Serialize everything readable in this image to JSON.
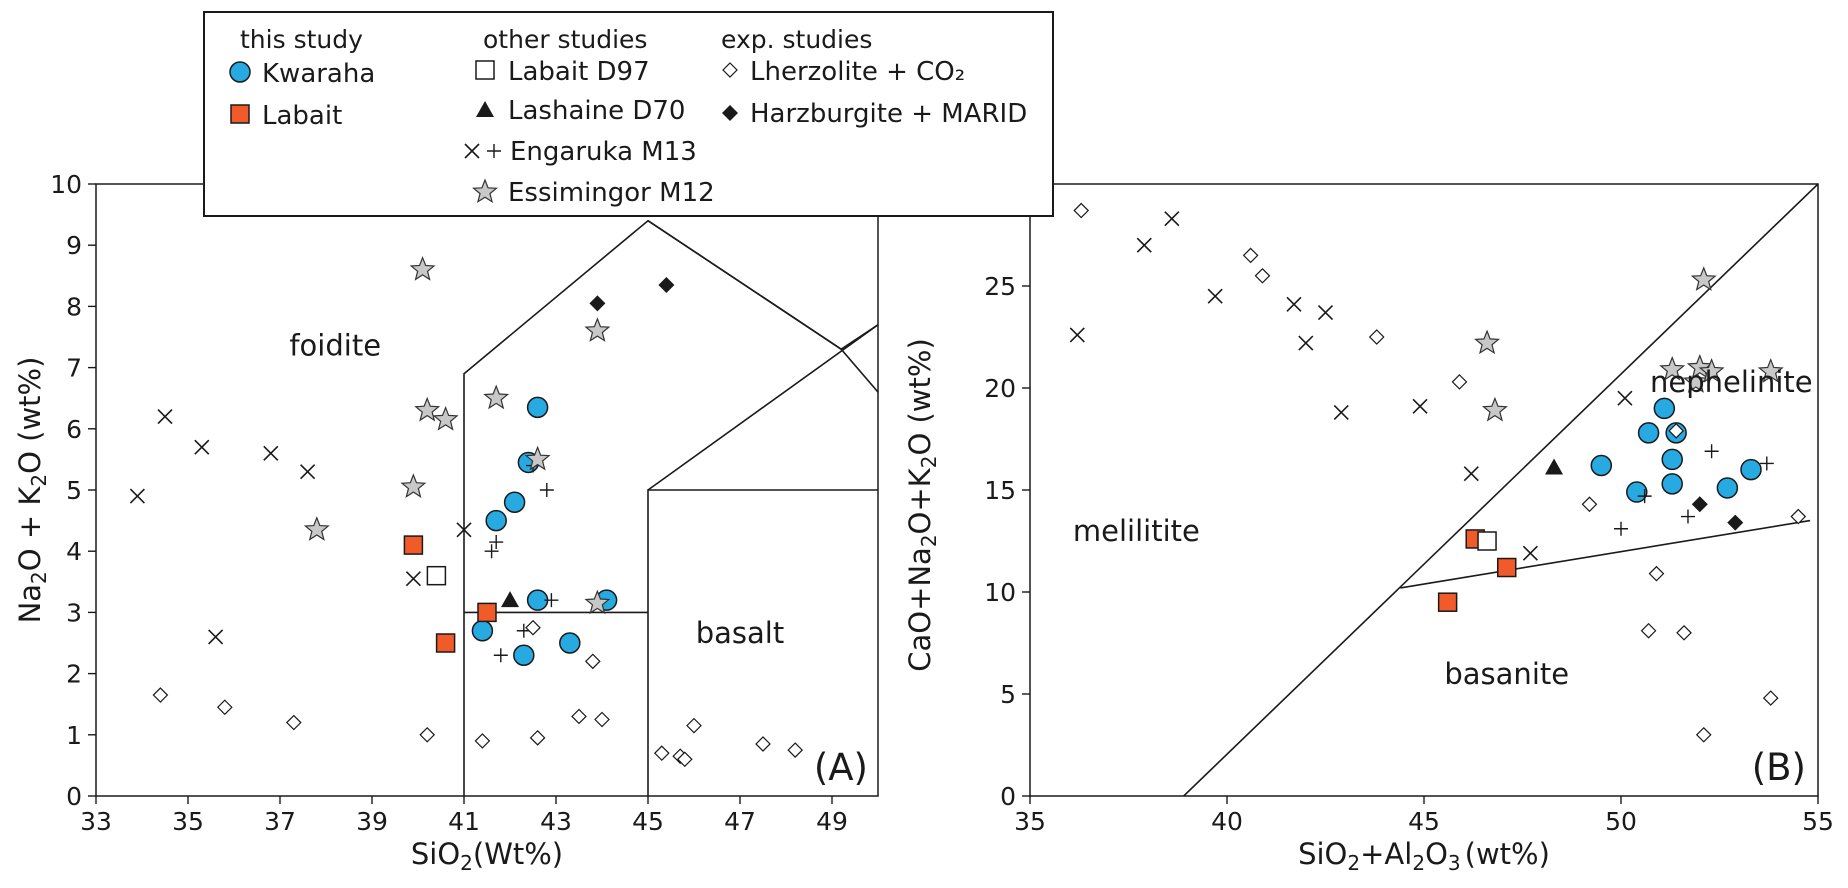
{
  "legend": {
    "groups": [
      {
        "key": "this",
        "heading": "this study",
        "items": [
          {
            "key": "kwaraha",
            "label": "Kwaraha"
          },
          {
            "key": "labait",
            "label": "Labait"
          }
        ]
      },
      {
        "key": "other",
        "heading": "other studies",
        "items": [
          {
            "key": "labait_d97",
            "label": "Labait D97"
          },
          {
            "key": "lashaine",
            "label": "Lashaine D70"
          },
          {
            "key": "engaruka",
            "label": "Engaruka M13"
          },
          {
            "key": "essimingor",
            "label": "Essimingor M12"
          }
        ]
      },
      {
        "key": "exp",
        "heading": "exp. studies",
        "items": [
          {
            "key": "lherzolite",
            "label": "Lherzolite + CO₂"
          },
          {
            "key": "harzburgite",
            "label": "Harzburgite + MARID"
          }
        ]
      }
    ]
  },
  "colors": {
    "kwaraha": "#27aae1",
    "labait": "#f15a29",
    "star": "#c8c8c8",
    "ink": "#1a1a1a"
  },
  "chart_data": [
    {
      "type": "scatter",
      "panel_label": "(A)",
      "xlabel_main": "SiO",
      "xlabel_sub": "2",
      "xlabel_tail": "(Wt%)",
      "ylabel_parts": [
        "Na",
        "2",
        "O + K",
        "2",
        "O (wt%)"
      ],
      "xlim": [
        33,
        50
      ],
      "ylim": [
        0,
        10
      ],
      "xticks": [
        33,
        35,
        37,
        39,
        41,
        43,
        45,
        47,
        49
      ],
      "yticks": [
        0,
        1,
        2,
        3,
        4,
        5,
        6,
        7,
        8,
        9,
        10
      ],
      "field_labels": [
        {
          "text": "foidite",
          "x": 38.2,
          "y": 7.2
        },
        {
          "text": "basalt",
          "x": 47.0,
          "y": 2.5
        }
      ],
      "boundaries": [
        [
          [
            41,
            0
          ],
          [
            41,
            6.9
          ],
          [
            45,
            9.4
          ],
          [
            49.2,
            7.3
          ],
          [
            50,
            6.6
          ]
        ],
        [
          [
            45,
            9.4
          ],
          [
            49.2,
            7.3
          ]
        ],
        [
          [
            49.2,
            7.3
          ],
          [
            50,
            7.7
          ]
        ],
        [
          [
            41,
            3
          ],
          [
            45,
            3
          ]
        ],
        [
          [
            45,
            0
          ],
          [
            45,
            5
          ],
          [
            50,
            5
          ]
        ],
        [
          [
            45,
            5
          ],
          [
            50,
            7.7
          ]
        ]
      ],
      "series": [
        {
          "name": "Kwaraha",
          "marker": "circle",
          "points": [
            [
              41.4,
              2.7
            ],
            [
              41.7,
              4.5
            ],
            [
              42.1,
              4.8
            ],
            [
              42.4,
              5.45
            ],
            [
              42.6,
              6.35
            ],
            [
              42.6,
              3.2
            ],
            [
              42.3,
              2.3
            ],
            [
              43.3,
              2.5
            ],
            [
              44.1,
              3.2
            ]
          ]
        },
        {
          "name": "Labait",
          "marker": "square",
          "points": [
            [
              39.9,
              4.1
            ],
            [
              40.6,
              2.5
            ],
            [
              41.5,
              3.0
            ]
          ]
        },
        {
          "name": "Labait D97",
          "marker": "open-square",
          "points": [
            [
              40.4,
              3.6
            ]
          ]
        },
        {
          "name": "Lashaine D70",
          "marker": "triangle",
          "points": [
            [
              42.0,
              3.2
            ]
          ]
        },
        {
          "name": "Engaruka M13 (x)",
          "marker": "x",
          "points": [
            [
              33.9,
              4.9
            ],
            [
              34.5,
              6.2
            ],
            [
              35.3,
              5.7
            ],
            [
              35.6,
              2.6
            ],
            [
              36.8,
              5.6
            ],
            [
              37.6,
              5.3
            ],
            [
              39.9,
              3.55
            ],
            [
              41.0,
              4.35
            ]
          ]
        },
        {
          "name": "Engaruka M13 (+)",
          "marker": "plus",
          "points": [
            [
              41.6,
              4.0
            ],
            [
              41.7,
              4.15
            ],
            [
              41.8,
              2.3
            ],
            [
              42.3,
              2.7
            ],
            [
              42.5,
              5.4
            ],
            [
              42.8,
              5.0
            ],
            [
              42.9,
              3.2
            ]
          ]
        },
        {
          "name": "Essimingor M12",
          "marker": "star",
          "points": [
            [
              37.8,
              4.35
            ],
            [
              39.9,
              5.05
            ],
            [
              40.1,
              8.6
            ],
            [
              40.2,
              6.3
            ],
            [
              40.6,
              6.15
            ],
            [
              41.7,
              6.5
            ],
            [
              42.6,
              5.5
            ],
            [
              43.9,
              7.6
            ],
            [
              43.9,
              3.15
            ]
          ]
        },
        {
          "name": "Lherzolite + CO2",
          "marker": "open-diamond",
          "points": [
            [
              34.4,
              1.65
            ],
            [
              35.8,
              1.45
            ],
            [
              37.3,
              1.2
            ],
            [
              40.2,
              1.0
            ],
            [
              41.4,
              0.9
            ],
            [
              42.5,
              2.75
            ],
            [
              42.6,
              0.95
            ],
            [
              43.5,
              1.3
            ],
            [
              43.8,
              2.2
            ],
            [
              44.0,
              1.25
            ],
            [
              45.3,
              0.7
            ],
            [
              45.7,
              0.65
            ],
            [
              45.8,
              0.6
            ],
            [
              46.0,
              1.15
            ],
            [
              47.5,
              0.85
            ],
            [
              48.2,
              0.75
            ]
          ]
        },
        {
          "name": "Harzburgite + MARID",
          "marker": "diamond",
          "points": [
            [
              43.9,
              8.05
            ],
            [
              45.4,
              8.35
            ]
          ]
        }
      ]
    },
    {
      "type": "scatter",
      "panel_label": "(B)",
      "xlabel_main": "SiO",
      "xlabel_sub": "2",
      "xlabel_mid": "+Al",
      "xlabel_sub2": "2",
      "xlabel_tail": "O",
      "xlabel_sub3": "3",
      "xlabel_end": "(wt%)",
      "ylabel": "CaO+Na₂O+K₂O (wt%)",
      "ylabel_parts": [
        "CaO+Na",
        "2",
        "O+K",
        "2",
        "O (wt%)"
      ],
      "xlim": [
        35,
        55
      ],
      "ylim": [
        0,
        30
      ],
      "xticks": [
        35,
        40,
        45,
        50,
        55
      ],
      "yticks": [
        0,
        5,
        10,
        15,
        20,
        25
      ],
      "field_labels": [
        {
          "text": "melilitite",
          "x": 37.7,
          "y": 12.5
        },
        {
          "text": "nephelinite",
          "x": 52.8,
          "y": 19.8
        },
        {
          "text": "basanite",
          "x": 47.1,
          "y": 5.5
        }
      ],
      "boundaries": [
        [
          [
            38.9,
            0
          ],
          [
            55,
            30
          ]
        ],
        [
          [
            44.4,
            10.2
          ],
          [
            54.8,
            13.5
          ]
        ]
      ],
      "series": [
        {
          "name": "Kwaraha",
          "marker": "circle",
          "points": [
            [
              49.5,
              16.2
            ],
            [
              50.4,
              14.9
            ],
            [
              50.7,
              17.8
            ],
            [
              51.1,
              19.0
            ],
            [
              51.3,
              15.3
            ],
            [
              51.3,
              16.5
            ],
            [
              51.4,
              17.8
            ],
            [
              52.7,
              15.1
            ],
            [
              53.3,
              16.0
            ]
          ]
        },
        {
          "name": "Labait",
          "marker": "square",
          "points": [
            [
              45.6,
              9.5
            ],
            [
              46.3,
              12.6
            ],
            [
              47.1,
              11.2
            ]
          ]
        },
        {
          "name": "Labait D97",
          "marker": "open-square",
          "points": [
            [
              46.6,
              12.5
            ]
          ]
        },
        {
          "name": "Lashaine D70",
          "marker": "triangle",
          "points": [
            [
              48.3,
              16.1
            ]
          ]
        },
        {
          "name": "Engaruka M13 (x)",
          "marker": "x",
          "points": [
            [
              36.2,
              22.6
            ],
            [
              37.9,
              27.0
            ],
            [
              38.6,
              28.3
            ],
            [
              39.7,
              24.5
            ],
            [
              41.7,
              24.1
            ],
            [
              42.0,
              22.2
            ],
            [
              42.5,
              23.7
            ],
            [
              42.9,
              18.8
            ],
            [
              44.9,
              19.1
            ],
            [
              46.2,
              15.8
            ],
            [
              47.7,
              11.9
            ],
            [
              50.1,
              19.5
            ]
          ]
        },
        {
          "name": "Engaruka M13 (+)",
          "marker": "plus",
          "points": [
            [
              50.0,
              13.1
            ],
            [
              50.6,
              14.7
            ],
            [
              51.7,
              13.7
            ],
            [
              52.3,
              16.9
            ],
            [
              53.7,
              16.3
            ]
          ]
        },
        {
          "name": "Essimingor M12",
          "marker": "star",
          "points": [
            [
              46.6,
              22.2
            ],
            [
              46.8,
              18.9
            ],
            [
              51.3,
              20.9
            ],
            [
              51.9,
              20.3
            ],
            [
              52.0,
              21.0
            ],
            [
              52.1,
              25.3
            ],
            [
              52.3,
              20.8
            ],
            [
              53.8,
              20.8
            ]
          ]
        },
        {
          "name": "Lherzolite + CO2",
          "marker": "open-diamond",
          "points": [
            [
              36.3,
              28.7
            ],
            [
              40.6,
              26.5
            ],
            [
              40.9,
              25.5
            ],
            [
              43.8,
              22.5
            ],
            [
              45.9,
              20.3
            ],
            [
              49.2,
              14.3
            ],
            [
              50.7,
              8.1
            ],
            [
              50.9,
              10.9
            ],
            [
              51.4,
              17.9
            ],
            [
              51.6,
              8.0
            ],
            [
              52.1,
              3.0
            ],
            [
              53.8,
              4.8
            ],
            [
              54.5,
              13.7
            ]
          ]
        },
        {
          "name": "Harzburgite + MARID",
          "marker": "diamond",
          "points": [
            [
              52.0,
              14.3
            ],
            [
              52.9,
              13.4
            ]
          ]
        }
      ]
    }
  ]
}
